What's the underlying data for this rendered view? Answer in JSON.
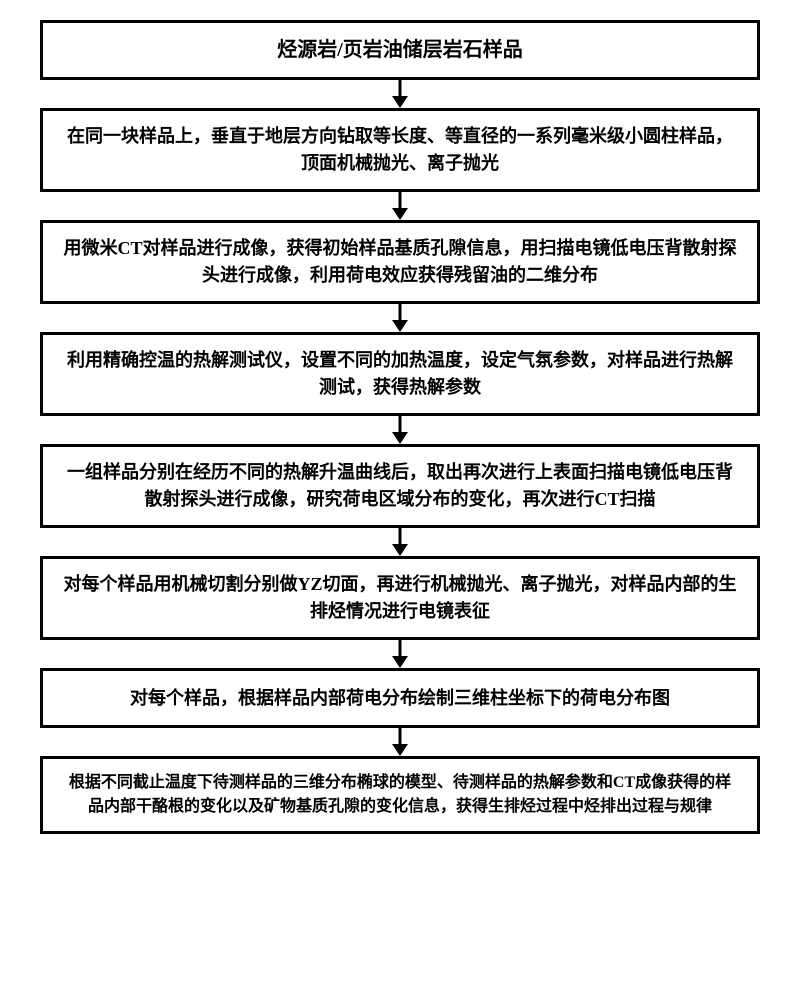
{
  "flowchart": {
    "type": "flowchart",
    "direction": "vertical",
    "background_color": "#ffffff",
    "box_border_color": "#000000",
    "box_border_width": 3,
    "text_color": "#000000",
    "font_weight": "bold",
    "arrow_color": "#000000",
    "arrow_height": 28,
    "nodes": [
      {
        "id": "n1",
        "text": "烃源岩/页岩油储层岩石样品",
        "fontsize": 20,
        "min_height": 48
      },
      {
        "id": "n2",
        "text": "在同一块样品上，垂直于地层方向钻取等长度、等直径的一系列毫米级小圆柱样品，顶面机械抛光、离子抛光",
        "fontsize": 18,
        "min_height": 72
      },
      {
        "id": "n3",
        "text": "用微米CT对样品进行成像，获得初始样品基质孔隙信息，用扫描电镜低电压背散射探头进行成像，利用荷电效应获得残留油的二维分布",
        "fontsize": 18,
        "min_height": 72
      },
      {
        "id": "n4",
        "text": "利用精确控温的热解测试仪，设置不同的加热温度，设定气氛参数，对样品进行热解测试，获得热解参数",
        "fontsize": 18,
        "min_height": 72
      },
      {
        "id": "n5",
        "text": "一组样品分别在经历不同的热解升温曲线后，取出再次进行上表面扫描电镜低电压背散射探头进行成像，研究荷电区域分布的变化，再次进行CT扫描",
        "fontsize": 18,
        "min_height": 72
      },
      {
        "id": "n6",
        "text": "对每个样品用机械切割分别做YZ切面，再进行机械抛光、离子抛光，对样品内部的生排烃情况进行电镜表征",
        "fontsize": 18,
        "min_height": 72
      },
      {
        "id": "n7",
        "text": "对每个样品，根据样品内部荷电分布绘制三维柱坐标下的荷电分布图",
        "fontsize": 18,
        "min_height": 60
      },
      {
        "id": "n8",
        "text": "根据不同截止温度下待测样品的三维分布椭球的模型、待测样品的热解参数和CT成像获得的样品内部干酪根的变化以及矿物基质孔隙的变化信息，获得生排烃过程中烃排出过程与规律",
        "fontsize": 16,
        "min_height": 72
      }
    ],
    "edges": [
      {
        "from": "n1",
        "to": "n2"
      },
      {
        "from": "n2",
        "to": "n3"
      },
      {
        "from": "n3",
        "to": "n4"
      },
      {
        "from": "n4",
        "to": "n5"
      },
      {
        "from": "n5",
        "to": "n6"
      },
      {
        "from": "n6",
        "to": "n7"
      },
      {
        "from": "n7",
        "to": "n8"
      }
    ]
  }
}
